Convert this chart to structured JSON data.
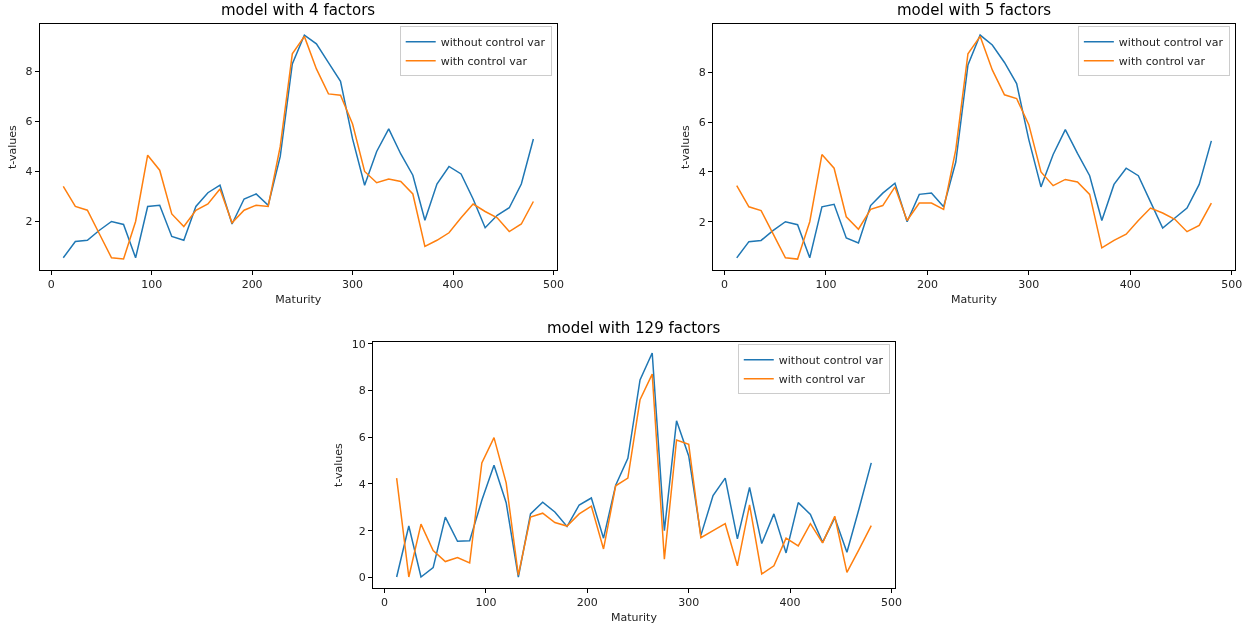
{
  "chart_data": [
    {
      "type": "line",
      "title": "model with 4 factors",
      "xlabel": "Maturity",
      "ylabel": "t-values",
      "x": [
        12,
        24,
        36,
        48,
        60,
        72,
        84,
        96,
        108,
        120,
        132,
        144,
        156,
        168,
        180,
        192,
        204,
        216,
        228,
        240,
        252,
        264,
        276,
        288,
        300,
        312,
        324,
        336,
        348,
        360,
        372,
        384,
        396,
        408,
        420,
        432,
        444,
        456,
        468,
        480
      ],
      "series": [
        {
          "name": "without control var",
          "color": "#1f77b4",
          "values": [
            0.55,
            1.2,
            1.25,
            1.65,
            2.0,
            1.88,
            0.55,
            2.6,
            2.65,
            1.4,
            1.25,
            2.6,
            3.15,
            3.45,
            1.9,
            2.9,
            3.1,
            2.65,
            4.6,
            8.3,
            9.45,
            9.1,
            8.35,
            7.6,
            5.3,
            3.45,
            4.8,
            5.7,
            4.7,
            3.85,
            2.05,
            3.5,
            4.2,
            3.9,
            2.9,
            1.75,
            2.25,
            2.55,
            3.5,
            5.3
          ]
        },
        {
          "name": "with control var",
          "color": "#ff7f0e",
          "values": [
            3.4,
            2.6,
            2.45,
            1.5,
            0.55,
            0.5,
            2.0,
            4.65,
            4.05,
            2.3,
            1.8,
            2.45,
            2.7,
            3.3,
            1.95,
            2.45,
            2.65,
            2.6,
            5.0,
            8.7,
            9.4,
            8.1,
            7.1,
            7.05,
            5.9,
            4.0,
            3.55,
            3.7,
            3.6,
            3.1,
            1.0,
            1.25,
            1.55,
            2.15,
            2.7,
            2.4,
            2.15,
            1.6,
            1.9,
            2.8
          ]
        }
      ],
      "xlim": [
        -11.4,
        503.4
      ],
      "xticks": [
        0,
        100,
        200,
        300,
        400,
        500
      ],
      "ylim": [
        0.05,
        9.9
      ],
      "yticks": [
        2,
        4,
        6,
        8
      ],
      "legend": "top right",
      "line_style": "solid"
    },
    {
      "type": "line",
      "title": "model with 5 factors",
      "xlabel": "Maturity",
      "ylabel": "t-values",
      "x": [
        12,
        24,
        36,
        48,
        60,
        72,
        84,
        96,
        108,
        120,
        132,
        144,
        156,
        168,
        180,
        192,
        204,
        216,
        228,
        240,
        252,
        264,
        276,
        288,
        300,
        312,
        324,
        336,
        348,
        360,
        372,
        384,
        396,
        408,
        420,
        432,
        444,
        456,
        468,
        480
      ],
      "series": [
        {
          "name": "without control var",
          "color": "#1f77b4",
          "values": [
            0.55,
            1.2,
            1.25,
            1.65,
            2.0,
            1.88,
            0.55,
            2.6,
            2.7,
            1.35,
            1.15,
            2.65,
            3.15,
            3.55,
            2.0,
            3.1,
            3.15,
            2.6,
            4.4,
            8.3,
            9.5,
            9.1,
            8.4,
            7.55,
            5.3,
            3.4,
            4.7,
            5.7,
            4.75,
            3.85,
            2.05,
            3.5,
            4.15,
            3.85,
            2.8,
            1.75,
            2.15,
            2.55,
            3.5,
            5.25
          ]
        },
        {
          "name": "with control var",
          "color": "#ff7f0e",
          "values": [
            3.45,
            2.6,
            2.45,
            1.5,
            0.55,
            0.5,
            2.0,
            4.7,
            4.15,
            2.2,
            1.7,
            2.5,
            2.65,
            3.4,
            2.05,
            2.75,
            2.75,
            2.5,
            4.9,
            8.75,
            9.45,
            8.1,
            7.1,
            6.95,
            5.9,
            4.0,
            3.45,
            3.7,
            3.6,
            3.1,
            0.95,
            1.25,
            1.5,
            2.05,
            2.55,
            2.35,
            2.1,
            1.6,
            1.85,
            2.75
          ]
        }
      ],
      "xlim": [
        -11.4,
        503.4
      ],
      "xticks": [
        0,
        100,
        200,
        300,
        400,
        500
      ],
      "ylim": [
        0.05,
        9.95
      ],
      "yticks": [
        2,
        4,
        6,
        8
      ],
      "legend": "top right",
      "line_style": "solid"
    },
    {
      "type": "line",
      "title": "model with 129 factors",
      "xlabel": "Maturity",
      "ylabel": "t-values",
      "x": [
        12,
        24,
        36,
        48,
        60,
        72,
        84,
        96,
        108,
        120,
        132,
        144,
        156,
        168,
        180,
        192,
        204,
        216,
        228,
        240,
        252,
        264,
        276,
        288,
        300,
        312,
        324,
        336,
        348,
        360,
        372,
        384,
        396,
        408,
        420,
        432,
        444,
        456,
        468,
        480
      ],
      "series": [
        {
          "name": "without control var",
          "color": "#1f77b4",
          "values": [
            0.02,
            2.2,
            0.02,
            0.42,
            2.58,
            1.55,
            1.57,
            3.3,
            4.8,
            3.2,
            0.02,
            2.72,
            3.22,
            2.8,
            2.18,
            3.1,
            3.4,
            1.68,
            3.95,
            5.1,
            8.45,
            9.6,
            2.0,
            6.7,
            5.2,
            1.8,
            3.5,
            4.25,
            1.65,
            3.85,
            1.45,
            2.72,
            1.05,
            3.2,
            2.7,
            1.5,
            2.55,
            1.08,
            2.95,
            4.9
          ]
        },
        {
          "name": "with control var",
          "color": "#ff7f0e",
          "values": [
            4.25,
            0.02,
            2.28,
            1.15,
            0.68,
            0.85,
            0.62,
            4.9,
            5.98,
            4.05,
            0.1,
            2.58,
            2.75,
            2.35,
            2.2,
            2.72,
            3.05,
            1.22,
            3.92,
            4.25,
            7.6,
            8.7,
            0.78,
            5.88,
            5.7,
            1.7,
            2.0,
            2.3,
            0.5,
            3.1,
            0.15,
            0.5,
            1.68,
            1.35,
            2.3,
            1.48,
            2.62,
            0.22,
            1.2,
            2.22
          ]
        }
      ],
      "xlim": [
        -11.4,
        503.4
      ],
      "xticks": [
        0,
        100,
        200,
        300,
        400,
        500
      ],
      "ylim": [
        -0.46,
        10.08
      ],
      "yticks": [
        0,
        2,
        4,
        6,
        8,
        10
      ],
      "legend": "top right",
      "line_style": "solid"
    }
  ]
}
